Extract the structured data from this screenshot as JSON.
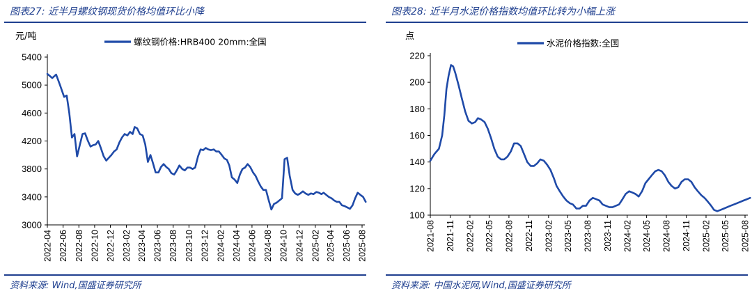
{
  "figures": [
    {
      "title": "图表27:  近半月螺纹钢现货价格均值环比小降",
      "source": "资料来源:  Wind,国盛证券研究所",
      "unit": "元/吨"
    },
    {
      "title": "图表28:  近半月水泥价格指数均值环比转为小幅上涨",
      "source": "资料来源:  中国水泥网,Wind,国盛证券研究所",
      "unit": "点"
    }
  ],
  "chart_data": [
    {
      "type": "line",
      "title": "",
      "xlabel": "",
      "ylabel": "元/吨",
      "ylim": [
        3000,
        5400
      ],
      "yticks": [
        3000,
        3400,
        3800,
        4200,
        4600,
        5000,
        5400
      ],
      "xticks": [
        "2022-04",
        "2022-06",
        "2022-08",
        "2022-10",
        "2022-12",
        "2023-02",
        "2023-04",
        "2023-06",
        "2023-08",
        "2023-10",
        "2023-12",
        "2024-02",
        "2024-04",
        "2024-06",
        "2024-08",
        "2024-10",
        "2024-12",
        "2025-02",
        "2025-04",
        "2025-06",
        "2025-08"
      ],
      "legend_position": "top-center",
      "series_color": "#1f4aa8",
      "series": [
        {
          "name": "螺纹钢价格:HRB400 20mm:全国",
          "x": [
            "2022-04-01",
            "2022-04-20",
            "2022-05-05",
            "2022-05-20",
            "2022-06-05",
            "2022-06-15",
            "2022-06-25",
            "2022-07-05",
            "2022-07-15",
            "2022-07-25",
            "2022-08-05",
            "2022-08-15",
            "2022-08-25",
            "2022-09-05",
            "2022-09-15",
            "2022-09-25",
            "2022-10-05",
            "2022-10-15",
            "2022-10-25",
            "2022-11-05",
            "2022-11-15",
            "2022-11-25",
            "2022-12-05",
            "2022-12-15",
            "2022-12-25",
            "2023-01-05",
            "2023-01-15",
            "2023-01-25",
            "2023-02-05",
            "2023-02-15",
            "2023-02-25",
            "2023-03-05",
            "2023-03-15",
            "2023-03-25",
            "2023-04-05",
            "2023-04-15",
            "2023-04-25",
            "2023-05-05",
            "2023-05-15",
            "2023-05-25",
            "2023-06-05",
            "2023-06-15",
            "2023-06-25",
            "2023-07-05",
            "2023-07-15",
            "2023-07-25",
            "2023-08-05",
            "2023-08-15",
            "2023-08-25",
            "2023-09-05",
            "2023-09-15",
            "2023-09-25",
            "2023-10-05",
            "2023-10-15",
            "2023-10-25",
            "2023-11-05",
            "2023-11-15",
            "2023-11-25",
            "2023-12-05",
            "2023-12-15",
            "2023-12-25",
            "2024-01-05",
            "2024-01-15",
            "2024-01-25",
            "2024-02-05",
            "2024-02-15",
            "2024-02-25",
            "2024-03-05",
            "2024-03-15",
            "2024-03-25",
            "2024-04-05",
            "2024-04-15",
            "2024-04-25",
            "2024-05-05",
            "2024-05-15",
            "2024-05-25",
            "2024-06-05",
            "2024-06-15",
            "2024-06-25",
            "2024-07-05",
            "2024-07-15",
            "2024-07-25",
            "2024-08-05",
            "2024-08-15",
            "2024-08-25",
            "2024-09-05",
            "2024-09-15",
            "2024-09-25",
            "2024-10-05",
            "2024-10-15",
            "2024-10-25",
            "2024-11-05",
            "2024-11-15",
            "2024-11-25",
            "2024-12-05",
            "2024-12-15",
            "2024-12-25",
            "2025-01-05",
            "2025-01-15",
            "2025-01-25",
            "2025-02-05",
            "2025-02-15",
            "2025-02-25",
            "2025-03-05",
            "2025-03-15",
            "2025-03-25",
            "2025-04-05",
            "2025-04-15",
            "2025-04-25",
            "2025-05-05",
            "2025-05-15",
            "2025-05-25",
            "2025-06-05",
            "2025-06-15",
            "2025-06-25",
            "2025-07-05",
            "2025-07-15",
            "2025-07-25",
            "2025-08-05",
            "2025-08-15"
          ],
          "values": [
            5160,
            5100,
            5150,
            5000,
            4830,
            4850,
            4600,
            4250,
            4300,
            3980,
            4150,
            4300,
            4310,
            4200,
            4120,
            4140,
            4150,
            4200,
            4100,
            3980,
            3920,
            3960,
            4000,
            4050,
            4080,
            4180,
            4250,
            4300,
            4280,
            4330,
            4300,
            4400,
            4380,
            4300,
            4280,
            4150,
            3900,
            4000,
            3880,
            3750,
            3750,
            3830,
            3870,
            3830,
            3800,
            3740,
            3720,
            3780,
            3850,
            3800,
            3780,
            3820,
            3820,
            3800,
            3820,
            3980,
            4080,
            4070,
            4100,
            4080,
            4070,
            4080,
            4050,
            4050,
            4000,
            3950,
            3930,
            3850,
            3680,
            3650,
            3600,
            3720,
            3800,
            3820,
            3870,
            3830,
            3750,
            3700,
            3620,
            3550,
            3500,
            3500,
            3350,
            3220,
            3300,
            3320,
            3350,
            3380,
            3940,
            3960,
            3700,
            3500,
            3450,
            3430,
            3450,
            3480,
            3450,
            3430,
            3450,
            3440,
            3470,
            3460,
            3440,
            3460,
            3430,
            3400,
            3380,
            3350,
            3330,
            3330,
            3280,
            3270,
            3250,
            3230,
            3280,
            3380,
            3460,
            3430,
            3400,
            3330
          ]
        }
      ]
    },
    {
      "type": "line",
      "title": "",
      "xlabel": "",
      "ylabel": "点",
      "ylim": [
        100,
        220
      ],
      "yticks": [
        100,
        120,
        140,
        160,
        180,
        200,
        220
      ],
      "xticks": [
        "2021-08",
        "2021-11",
        "2022-02",
        "2022-05",
        "2022-08",
        "2022-11",
        "2023-02",
        "2023-05",
        "2023-08",
        "2023-11",
        "2024-02",
        "2024-05",
        "2024-08",
        "2024-11",
        "2025-02",
        "2025-05",
        "2025-08"
      ],
      "legend_position": "top-center",
      "series_color": "#1f4aa8",
      "series": [
        {
          "name": "水泥价格指数:全国",
          "x": [
            "2021-08-01",
            "2021-08-20",
            "2021-09-10",
            "2021-09-25",
            "2021-10-05",
            "2021-10-15",
            "2021-10-25",
            "2021-11-05",
            "2021-11-15",
            "2021-11-25",
            "2021-12-10",
            "2021-12-25",
            "2022-01-10",
            "2022-01-25",
            "2022-02-10",
            "2022-02-25",
            "2022-03-10",
            "2022-03-25",
            "2022-04-10",
            "2022-04-25",
            "2022-05-10",
            "2022-05-25",
            "2022-06-10",
            "2022-06-25",
            "2022-07-10",
            "2022-07-25",
            "2022-08-10",
            "2022-08-25",
            "2022-09-10",
            "2022-09-25",
            "2022-10-10",
            "2022-10-25",
            "2022-11-10",
            "2022-11-25",
            "2022-12-10",
            "2022-12-25",
            "2023-01-10",
            "2023-01-25",
            "2023-02-10",
            "2023-02-25",
            "2023-03-10",
            "2023-03-25",
            "2023-04-10",
            "2023-04-25",
            "2023-05-10",
            "2023-05-25",
            "2023-06-10",
            "2023-06-25",
            "2023-07-10",
            "2023-07-25",
            "2023-08-10",
            "2023-08-25",
            "2023-09-10",
            "2023-09-25",
            "2023-10-10",
            "2023-10-25",
            "2023-11-10",
            "2023-11-25",
            "2023-12-10",
            "2023-12-25",
            "2024-01-10",
            "2024-01-25",
            "2024-02-10",
            "2024-02-25",
            "2024-03-10",
            "2024-03-25",
            "2024-04-10",
            "2024-04-25",
            "2024-05-10",
            "2024-05-25",
            "2024-06-10",
            "2024-06-25",
            "2024-07-10",
            "2024-07-25",
            "2024-08-10",
            "2024-08-25",
            "2024-09-10",
            "2024-09-25",
            "2024-10-10",
            "2024-10-25",
            "2024-11-10",
            "2024-11-25",
            "2024-12-10",
            "2024-12-25",
            "2025-01-10",
            "2025-01-25",
            "2025-02-10",
            "2025-02-25",
            "2025-03-10",
            "2025-03-25",
            "2025-04-10",
            "2025-04-25",
            "2025-05-10",
            "2025-05-25",
            "2025-06-10",
            "2025-06-25",
            "2025-07-10",
            "2025-07-25",
            "2025-08-10",
            "2025-08-25"
          ],
          "values": [
            141,
            146,
            150,
            160,
            175,
            195,
            205,
            213,
            212,
            207,
            198,
            188,
            178,
            171,
            169,
            170,
            173,
            172,
            170,
            165,
            158,
            150,
            144,
            142,
            142,
            144,
            148,
            154,
            154,
            152,
            146,
            140,
            137,
            137,
            139,
            142,
            141,
            138,
            134,
            128,
            122,
            118,
            114,
            111,
            109,
            108,
            105,
            105,
            107,
            107,
            111,
            113,
            112,
            111,
            108,
            107,
            106,
            106,
            107,
            108,
            112,
            116,
            118,
            117,
            116,
            114,
            118,
            124,
            127,
            130,
            133,
            134,
            133,
            130,
            125,
            122,
            120,
            121,
            125,
            127,
            127,
            125,
            121,
            118,
            115,
            113,
            110,
            107,
            104,
            103,
            104,
            105,
            106,
            107,
            108,
            109,
            110,
            111,
            112,
            113
          ]
        }
      ]
    }
  ]
}
